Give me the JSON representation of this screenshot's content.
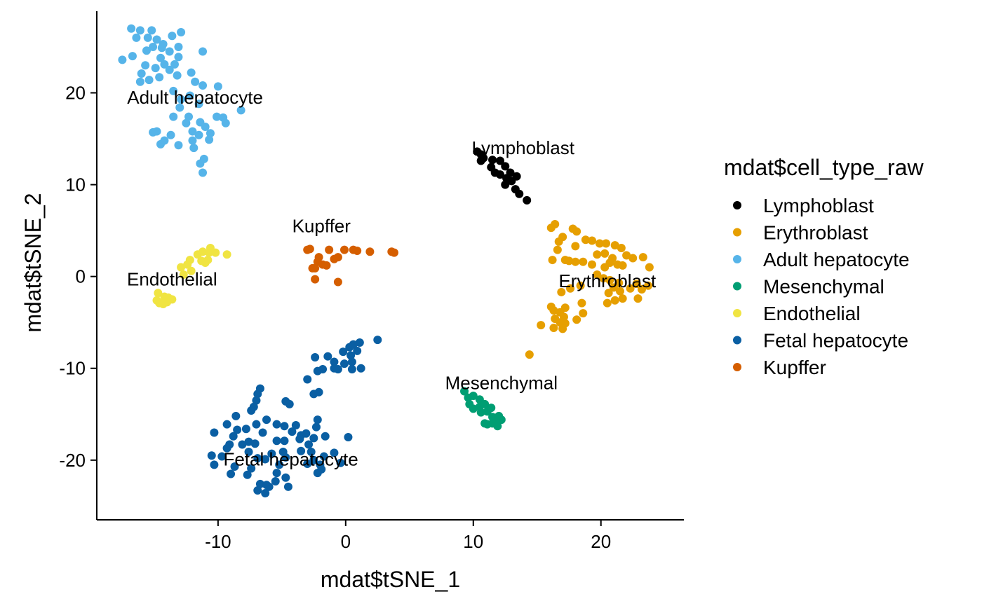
{
  "chart_data": {
    "type": "scatter",
    "xlabel": "mdat$tSNE_1",
    "ylabel": "mdat$tSNE_2",
    "xlim": [
      -19.5,
      26.5
    ],
    "ylim": [
      -26.5,
      29.5
    ],
    "x_ticks": [
      -10,
      0,
      10,
      20
    ],
    "y_ticks": [
      -20,
      -10,
      0,
      10,
      20
    ],
    "x_tick_labels": [
      "-10",
      "0",
      "10",
      "20"
    ],
    "y_tick_labels": [
      "-20",
      "-10",
      "0",
      "10",
      "20"
    ],
    "grid": false,
    "legend": {
      "title": "mdat$cell_type_raw",
      "position": "right"
    },
    "series": [
      {
        "name": "Lymphoblast",
        "color": "#000000",
        "points": [
          [
            10.3,
            13.6
          ],
          [
            10.6,
            13.3
          ],
          [
            10.8,
            12.9
          ],
          [
            10.6,
            12.6
          ],
          [
            11.5,
            12.7
          ],
          [
            12.1,
            12.6
          ],
          [
            11.4,
            11.9
          ],
          [
            11.7,
            11.3
          ],
          [
            12.1,
            11.1
          ],
          [
            12.5,
            12.0
          ],
          [
            12.9,
            11.3
          ],
          [
            12.6,
            10.7
          ],
          [
            13.0,
            10.4
          ],
          [
            13.4,
            10.9
          ],
          [
            12.5,
            10.0
          ],
          [
            13.3,
            9.5
          ],
          [
            13.6,
            9.0
          ],
          [
            14.2,
            8.3
          ]
        ],
        "label": {
          "text": "Lymphoblast",
          "x": 13.9,
          "y": 14.0
        }
      },
      {
        "name": "Erythroblast",
        "color": "#E69F00",
        "points": [
          [
            16.1,
            5.3
          ],
          [
            16.4,
            5.7
          ],
          [
            17.0,
            4.3
          ],
          [
            16.7,
            3.8
          ],
          [
            17.8,
            5.2
          ],
          [
            18.1,
            4.9
          ],
          [
            16.6,
            2.9
          ],
          [
            18.0,
            3.3
          ],
          [
            18.8,
            4.0
          ],
          [
            19.3,
            3.9
          ],
          [
            19.9,
            3.6
          ],
          [
            20.4,
            3.6
          ],
          [
            21.1,
            3.4
          ],
          [
            21.6,
            3.1
          ],
          [
            22.0,
            2.3
          ],
          [
            22.5,
            2.0
          ],
          [
            23.3,
            2.1
          ],
          [
            23.8,
            1.0
          ],
          [
            19.7,
            2.4
          ],
          [
            20.3,
            2.5
          ],
          [
            20.9,
            2.0
          ],
          [
            20.7,
            1.5
          ],
          [
            21.3,
            1.3
          ],
          [
            21.7,
            1.2
          ],
          [
            16.2,
            1.8
          ],
          [
            17.2,
            1.8
          ],
          [
            17.5,
            1.7
          ],
          [
            18.0,
            1.6
          ],
          [
            18.6,
            1.6
          ],
          [
            19.3,
            1.3
          ],
          [
            20.3,
            1.0
          ],
          [
            19.7,
            0.2
          ],
          [
            20.2,
            -0.2
          ],
          [
            20.7,
            -0.4
          ],
          [
            21.4,
            -0.7
          ],
          [
            21.0,
            -1.2
          ],
          [
            21.5,
            -1.6
          ],
          [
            22.3,
            -1.3
          ],
          [
            22.8,
            -0.8
          ],
          [
            23.2,
            -1.4
          ],
          [
            23.7,
            -1.0
          ],
          [
            18.4,
            -1.0
          ],
          [
            17.6,
            -1.3
          ],
          [
            16.9,
            -1.7
          ],
          [
            16.1,
            -3.3
          ],
          [
            16.3,
            -3.7
          ],
          [
            16.8,
            -3.9
          ],
          [
            17.2,
            -3.4
          ],
          [
            17.1,
            -4.4
          ],
          [
            16.4,
            -4.6
          ],
          [
            16.8,
            -5.0
          ],
          [
            17.2,
            -5.1
          ],
          [
            17.0,
            -5.7
          ],
          [
            16.3,
            -5.6
          ],
          [
            15.3,
            -5.3
          ],
          [
            18.5,
            -2.9
          ],
          [
            18.1,
            -4.7
          ],
          [
            18.6,
            -4.0
          ],
          [
            20.6,
            -1.8
          ],
          [
            21.7,
            -2.4
          ],
          [
            21.1,
            -2.6
          ],
          [
            20.5,
            -2.9
          ],
          [
            22.9,
            -2.4
          ],
          [
            14.4,
            -8.5
          ]
        ],
        "label": {
          "text": "Erythroblast",
          "x": 20.5,
          "y": -0.5
        }
      },
      {
        "name": "Adult hepatocyte",
        "color": "#56B4E9",
        "points": [
          [
            -16.8,
            27.0
          ],
          [
            -16.1,
            26.8
          ],
          [
            -15.2,
            26.8
          ],
          [
            -16.4,
            26.0
          ],
          [
            -15.5,
            26.0
          ],
          [
            -14.8,
            25.8
          ],
          [
            -13.6,
            26.2
          ],
          [
            -12.9,
            26.6
          ],
          [
            -14.3,
            25.3
          ],
          [
            -15.1,
            25.0
          ],
          [
            -14.4,
            24.9
          ],
          [
            -13.8,
            24.5
          ],
          [
            -13.1,
            25.0
          ],
          [
            -11.2,
            24.5
          ],
          [
            -16.7,
            24.0
          ],
          [
            -17.5,
            23.6
          ],
          [
            -15.6,
            24.6
          ],
          [
            -14.5,
            23.8
          ],
          [
            -13.1,
            23.9
          ],
          [
            -15.7,
            23.0
          ],
          [
            -14.2,
            23.1
          ],
          [
            -13.4,
            23.1
          ],
          [
            -14.9,
            22.7
          ],
          [
            -13.8,
            22.5
          ],
          [
            -13.2,
            21.9
          ],
          [
            -12.1,
            22.2
          ],
          [
            -16.0,
            22.1
          ],
          [
            -15.4,
            21.4
          ],
          [
            -16.1,
            21.2
          ],
          [
            -14.6,
            21.7
          ],
          [
            -11.8,
            21.2
          ],
          [
            -11.2,
            20.8
          ],
          [
            -10.0,
            20.7
          ],
          [
            -13.5,
            20.2
          ],
          [
            -12.9,
            19.3
          ],
          [
            -12.2,
            19.7
          ],
          [
            -13.0,
            18.4
          ],
          [
            -11.5,
            18.8
          ],
          [
            -10.1,
            17.4
          ],
          [
            -9.6,
            17.3
          ],
          [
            -9.4,
            16.7
          ],
          [
            -8.2,
            18.1
          ],
          [
            -13.5,
            17.4
          ],
          [
            -12.3,
            17.4
          ],
          [
            -12.5,
            16.7
          ],
          [
            -11.4,
            16.8
          ],
          [
            -11.0,
            16.3
          ],
          [
            -12.0,
            15.8
          ],
          [
            -14.8,
            15.8
          ],
          [
            -15.1,
            15.7
          ],
          [
            -13.7,
            15.4
          ],
          [
            -14.2,
            14.8
          ],
          [
            -14.5,
            14.4
          ],
          [
            -12.0,
            14.8
          ],
          [
            -11.5,
            15.4
          ],
          [
            -10.6,
            15.6
          ],
          [
            -10.7,
            14.9
          ],
          [
            -13.1,
            14.3
          ],
          [
            -11.9,
            14.0
          ],
          [
            -11.1,
            12.8
          ],
          [
            -11.4,
            12.3
          ],
          [
            -11.2,
            11.3
          ]
        ],
        "label": {
          "text": "Adult hepatocyte",
          "x": -11.8,
          "y": 19.5
        }
      },
      {
        "name": "Mesenchymal",
        "color": "#009E73",
        "points": [
          [
            9.3,
            -12.5
          ],
          [
            9.6,
            -13.2
          ],
          [
            10.0,
            -13.0
          ],
          [
            10.5,
            -13.4
          ],
          [
            9.7,
            -13.9
          ],
          [
            10.0,
            -14.4
          ],
          [
            10.5,
            -14.2
          ],
          [
            10.9,
            -13.9
          ],
          [
            11.1,
            -14.7
          ],
          [
            10.6,
            -14.8
          ],
          [
            11.4,
            -14.3
          ],
          [
            11.5,
            -15.3
          ],
          [
            12.0,
            -15.2
          ],
          [
            12.2,
            -15.6
          ],
          [
            11.8,
            -15.8
          ],
          [
            11.5,
            -16.0
          ],
          [
            11.1,
            -16.1
          ],
          [
            10.9,
            -16.0
          ],
          [
            11.9,
            -16.3
          ]
        ],
        "label": {
          "text": "Mesenchymal",
          "x": 12.2,
          "y": -11.6
        }
      },
      {
        "name": "Endothelial",
        "color": "#F0E442",
        "points": [
          [
            -12.9,
            1.0
          ],
          [
            -12.4,
            1.3
          ],
          [
            -12.2,
            1.8
          ],
          [
            -11.6,
            2.4
          ],
          [
            -11.2,
            2.7
          ],
          [
            -10.6,
            3.1
          ],
          [
            -10.7,
            2.6
          ],
          [
            -10.2,
            2.6
          ],
          [
            -9.3,
            2.4
          ],
          [
            -11.3,
            1.7
          ],
          [
            -11.0,
            1.5
          ],
          [
            -10.8,
            1.8
          ],
          [
            -12.1,
            0.6
          ],
          [
            -12.7,
            0.2
          ],
          [
            -14.7,
            -1.8
          ],
          [
            -14.2,
            -2.2
          ],
          [
            -14.8,
            -2.6
          ],
          [
            -14.6,
            -2.9
          ],
          [
            -14.3,
            -3.0
          ],
          [
            -14.0,
            -2.8
          ],
          [
            -13.6,
            -2.5
          ],
          [
            -13.9,
            -2.3
          ]
        ],
        "label": {
          "text": "Endothelial",
          "x": -13.6,
          "y": -0.3
        }
      },
      {
        "name": "Fetal hepatocyte",
        "color": "#0A5FA3",
        "points": [
          [
            2.5,
            -6.9
          ],
          [
            1.1,
            -7.2
          ],
          [
            0.6,
            -7.4
          ],
          [
            0.3,
            -7.7
          ],
          [
            0.9,
            -8.1
          ],
          [
            0.4,
            -8.6
          ],
          [
            -0.2,
            -8.2
          ],
          [
            -1.4,
            -8.7
          ],
          [
            -2.4,
            -8.8
          ],
          [
            -0.9,
            -9.3
          ],
          [
            0.5,
            -9.3
          ],
          [
            -0.1,
            -9.5
          ],
          [
            -0.9,
            -10.0
          ],
          [
            -0.6,
            -10.1
          ],
          [
            -1.8,
            -10.1
          ],
          [
            -2.2,
            -10.3
          ],
          [
            1.2,
            -10.0
          ],
          [
            0.5,
            -10.1
          ],
          [
            -3.0,
            -11.2
          ],
          [
            -2.1,
            -12.6
          ],
          [
            -2.5,
            -12.8
          ],
          [
            -6.7,
            -12.2
          ],
          [
            -6.9,
            -12.8
          ],
          [
            -7.0,
            -13.5
          ],
          [
            -7.2,
            -14.2
          ],
          [
            -4.7,
            -13.6
          ],
          [
            -4.4,
            -13.9
          ],
          [
            -7.4,
            -14.6
          ],
          [
            -8.6,
            -15.2
          ],
          [
            -9.3,
            -16.1
          ],
          [
            -7.0,
            -16.1
          ],
          [
            -6.2,
            -15.6
          ],
          [
            -5.4,
            -16.1
          ],
          [
            -4.8,
            -16.3
          ],
          [
            -3.9,
            -16.2
          ],
          [
            -8.5,
            -16.7
          ],
          [
            -7.8,
            -16.6
          ],
          [
            -6.5,
            -17.0
          ],
          [
            -4.2,
            -16.9
          ],
          [
            -3.5,
            -17.3
          ],
          [
            -2.2,
            -15.6
          ],
          [
            -2.3,
            -16.4
          ],
          [
            -3.1,
            -17.1
          ],
          [
            -2.5,
            -17.6
          ],
          [
            -10.3,
            -17.0
          ],
          [
            -8.8,
            -17.4
          ],
          [
            -7.6,
            -18.0
          ],
          [
            -7.1,
            -18.2
          ],
          [
            -5.4,
            -17.9
          ],
          [
            -4.8,
            -17.9
          ],
          [
            -3.6,
            -17.7
          ],
          [
            -1.6,
            -17.4
          ],
          [
            -2.9,
            -18.3
          ],
          [
            -8.1,
            -18.3
          ],
          [
            -9.1,
            -18.3
          ],
          [
            -9.3,
            -18.7
          ],
          [
            -7.6,
            -19.1
          ],
          [
            -5.8,
            -19.3
          ],
          [
            -4.9,
            -19.1
          ],
          [
            -3.5,
            -19.0
          ],
          [
            -2.7,
            -19.1
          ],
          [
            0.2,
            -17.5
          ],
          [
            -10.5,
            -19.5
          ],
          [
            -9.7,
            -19.6
          ],
          [
            -6.9,
            -19.8
          ],
          [
            -6.3,
            -19.9
          ],
          [
            -4.7,
            -19.7
          ],
          [
            -1.7,
            -19.6
          ],
          [
            -2.5,
            -20.0
          ],
          [
            -0.9,
            -19.2
          ],
          [
            -10.3,
            -20.5
          ],
          [
            -8.7,
            -20.7
          ],
          [
            -7.4,
            -20.9
          ],
          [
            -5.2,
            -20.5
          ],
          [
            -3.0,
            -20.4
          ],
          [
            -2.0,
            -20.5
          ],
          [
            -0.4,
            -20.3
          ],
          [
            -9.0,
            -21.5
          ],
          [
            -7.7,
            -21.6
          ],
          [
            -5.4,
            -21.4
          ],
          [
            -4.7,
            -21.9
          ],
          [
            -1.9,
            -21.0
          ],
          [
            -2.2,
            -21.4
          ],
          [
            -6.7,
            -22.6
          ],
          [
            -6.2,
            -22.7
          ],
          [
            -5.5,
            -22.3
          ],
          [
            -6.0,
            -22.9
          ],
          [
            -6.9,
            -23.3
          ],
          [
            -6.3,
            -23.6
          ],
          [
            -4.5,
            -22.9
          ]
        ],
        "label": {
          "text": "Fetal hepatocyte",
          "x": -4.3,
          "y": -19.9
        }
      },
      {
        "name": "Kupffer",
        "color": "#D55E00",
        "points": [
          [
            -2.8,
            3.0
          ],
          [
            -3.0,
            2.9
          ],
          [
            -1.3,
            2.9
          ],
          [
            -0.1,
            2.9
          ],
          [
            0.6,
            2.9
          ],
          [
            0.9,
            2.8
          ],
          [
            -2.1,
            2.1
          ],
          [
            -2.2,
            1.6
          ],
          [
            -1.5,
            1.2
          ],
          [
            -1.8,
            1.3
          ],
          [
            -2.4,
            0.9
          ],
          [
            -2.6,
            0.9
          ],
          [
            -0.6,
            2.1
          ],
          [
            -0.9,
            1.9
          ],
          [
            1.9,
            2.7
          ],
          [
            3.6,
            2.7
          ],
          [
            3.8,
            2.6
          ],
          [
            -2.4,
            -0.3
          ],
          [
            -0.6,
            -0.6
          ]
        ],
        "label": {
          "text": "Kupffer",
          "x": -1.9,
          "y": 5.5
        }
      }
    ]
  }
}
